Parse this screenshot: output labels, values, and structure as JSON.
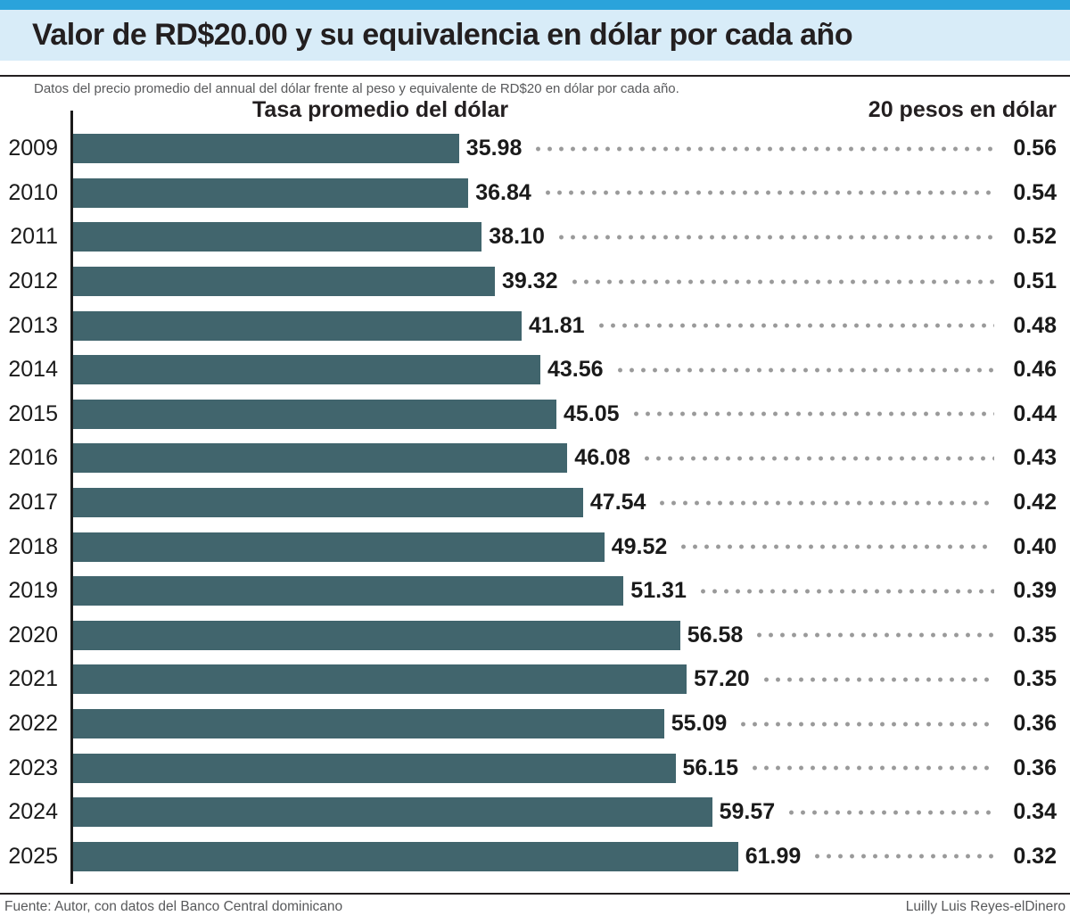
{
  "header": {
    "title": "Valor de RD$20.00 y su equivalencia en dólar por cada año",
    "subtitle": "Datos del precio promedio del annual del dólar frente al peso y equivalente de RD$20 en dólar por cada año."
  },
  "columns": {
    "left": "Tasa promedio del dólar",
    "right": "20 pesos en dólar"
  },
  "footer": {
    "source": "Fuente: Autor, con datos del Banco Central dominicano",
    "credit": "Luilly Luis Reyes-elDinero"
  },
  "colors": {
    "accent-blue": "#2aa3db",
    "band-blue": "#d8ecf8",
    "bar-teal": "#41656d",
    "ink": "#1a1a1a",
    "rule": "#231f20",
    "muted": "#58595b",
    "dot": "#9a9a9a"
  },
  "chart_data": {
    "type": "bar",
    "orientation": "horizontal",
    "title": "Valor de RD$20.00 y su equivalencia en dólar por cada año",
    "subtitle": "Datos del precio promedio del annual del dólar frente al peso y equivalente de RD$20 en dólar por cada año.",
    "categories": [
      2009,
      2010,
      2011,
      2012,
      2013,
      2014,
      2015,
      2016,
      2017,
      2018,
      2019,
      2020,
      2021,
      2022,
      2023,
      2024,
      2025
    ],
    "series": [
      {
        "name": "Tasa promedio del dólar",
        "values": [
          35.98,
          36.84,
          38.1,
          39.32,
          41.81,
          43.56,
          45.05,
          46.08,
          47.54,
          49.52,
          51.31,
          56.58,
          57.2,
          55.09,
          56.15,
          59.57,
          61.99
        ]
      },
      {
        "name": "20 pesos en dólar",
        "values": [
          0.56,
          0.54,
          0.52,
          0.51,
          0.48,
          0.46,
          0.44,
          0.43,
          0.42,
          0.4,
          0.39,
          0.35,
          0.35,
          0.36,
          0.36,
          0.34,
          0.32
        ]
      }
    ],
    "xlim": [
      0,
      65
    ],
    "grid": false,
    "legend_position": "column-headers",
    "value_labels": "end-of-bar",
    "leader_style": "dotted"
  }
}
